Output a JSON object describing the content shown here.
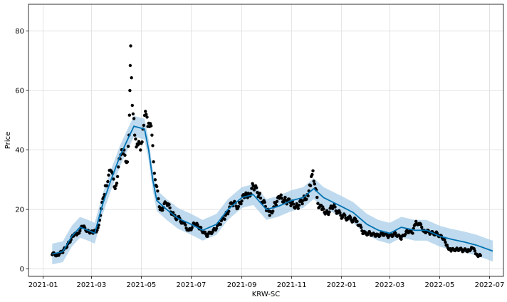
{
  "chart_data": {
    "type": "line",
    "title": "",
    "xlabel": "KRW-SC",
    "ylabel": "Price",
    "x_tick_labels": [
      "2021-01",
      "2021-03",
      "2021-05",
      "2021-07",
      "2021-09",
      "2021-11",
      "2022-01",
      "2022-03",
      "2022-05",
      "2022-07"
    ],
    "y_tick_labels": [
      "0",
      "20",
      "40",
      "60",
      "80"
    ],
    "xlim": [
      "2020-12-14",
      "2022-07-18"
    ],
    "ylim": [
      -2.5,
      89
    ],
    "grid": true,
    "legend": "none",
    "colors": {
      "observed": "#000000",
      "forecast": "#0072B2",
      "interval": "#aacde8",
      "grid": "#dddddd",
      "frame": "#000000"
    },
    "forecast": {
      "x": [
        "2021-01-12",
        "2021-01-25",
        "2021-02-05",
        "2021-02-15",
        "2021-02-25",
        "2021-03-05",
        "2021-03-15",
        "2021-03-25",
        "2021-04-05",
        "2021-04-15",
        "2021-04-22",
        "2021-05-05",
        "2021-05-10",
        "2021-05-15",
        "2021-05-20",
        "2021-06-01",
        "2021-06-15",
        "2021-07-01",
        "2021-07-15",
        "2021-08-01",
        "2021-08-15",
        "2021-09-01",
        "2021-09-15",
        "2021-10-01",
        "2021-10-15",
        "2021-11-01",
        "2021-11-15",
        "2021-11-28",
        "2021-12-10",
        "2022-01-01",
        "2022-01-15",
        "2022-02-01",
        "2022-02-15",
        "2022-03-01",
        "2022-03-15",
        "2022-04-01",
        "2022-04-15",
        "2022-05-01",
        "2022-05-15",
        "2022-06-01",
        "2022-06-15",
        "2022-07-05"
      ],
      "yhat": [
        5,
        5.8,
        11,
        14,
        13,
        12,
        22,
        30,
        38,
        44,
        48,
        47,
        40,
        30,
        23,
        20,
        17,
        15,
        13,
        15,
        20,
        24,
        25,
        20,
        21,
        23,
        24,
        27,
        24,
        21,
        19,
        15,
        13,
        12,
        14,
        13,
        13,
        11,
        10,
        9,
        8,
        6
      ],
      "width": 3.5
    },
    "observed": {
      "x": [
        "2021-01-12",
        "2021-01-18",
        "2021-01-25",
        "2021-02-01",
        "2021-02-07",
        "2021-02-12",
        "2021-02-18",
        "2021-02-25",
        "2021-03-03",
        "2021-03-08",
        "2021-03-12",
        "2021-03-18",
        "2021-03-25",
        "2021-03-30",
        "2021-04-05",
        "2021-04-10",
        "2021-04-14",
        "2021-04-16",
        "2021-04-17",
        "2021-04-18",
        "2021-04-20",
        "2021-04-23",
        "2021-04-26",
        "2021-04-30",
        "2021-05-03",
        "2021-05-07",
        "2021-05-10",
        "2021-05-14",
        "2021-05-18",
        "2021-05-24",
        "2021-06-01",
        "2021-06-10",
        "2021-06-20",
        "2021-06-28",
        "2021-07-05",
        "2021-07-12",
        "2021-07-20",
        "2021-07-28",
        "2021-08-05",
        "2021-08-12",
        "2021-08-20",
        "2021-08-28",
        "2021-09-03",
        "2021-09-08",
        "2021-09-15",
        "2021-09-22",
        "2021-09-30",
        "2021-10-05",
        "2021-10-12",
        "2021-10-18",
        "2021-10-25",
        "2021-11-01",
        "2021-11-08",
        "2021-11-15",
        "2021-11-20",
        "2021-11-24",
        "2021-11-27",
        "2021-11-30",
        "2021-12-03",
        "2021-12-08",
        "2021-12-15",
        "2021-12-22",
        "2021-12-31",
        "2022-01-10",
        "2022-01-20",
        "2022-01-28",
        "2022-02-05",
        "2022-02-12",
        "2022-02-20",
        "2022-02-28",
        "2022-03-08",
        "2022-03-15",
        "2022-03-22",
        "2022-03-29",
        "2022-04-02",
        "2022-04-06",
        "2022-04-12",
        "2022-04-20",
        "2022-04-28",
        "2022-05-05",
        "2022-05-10",
        "2022-05-15",
        "2022-05-22",
        "2022-05-30",
        "2022-06-05",
        "2022-06-10",
        "2022-06-15",
        "2022-06-20"
      ],
      "y": [
        4.8,
        5,
        5.5,
        9,
        11,
        12,
        14,
        13,
        12,
        13,
        18,
        28,
        33,
        27,
        37,
        40,
        36,
        45,
        60,
        75,
        55,
        45,
        42,
        40,
        47,
        52,
        49,
        45,
        30,
        20,
        22,
        18,
        16,
        13,
        15,
        14,
        11,
        13,
        15,
        18,
        22,
        21,
        25,
        24,
        28,
        25,
        21,
        18,
        22,
        24,
        23,
        22,
        21,
        23,
        25,
        28,
        33,
        27,
        22,
        20,
        19,
        21,
        18,
        17,
        16,
        12,
        12,
        11,
        12,
        11,
        12,
        10,
        13,
        12,
        16,
        15,
        13,
        12,
        12,
        10,
        8,
        6,
        7,
        6,
        6.5,
        7,
        5,
        4.5
      ]
    }
  }
}
